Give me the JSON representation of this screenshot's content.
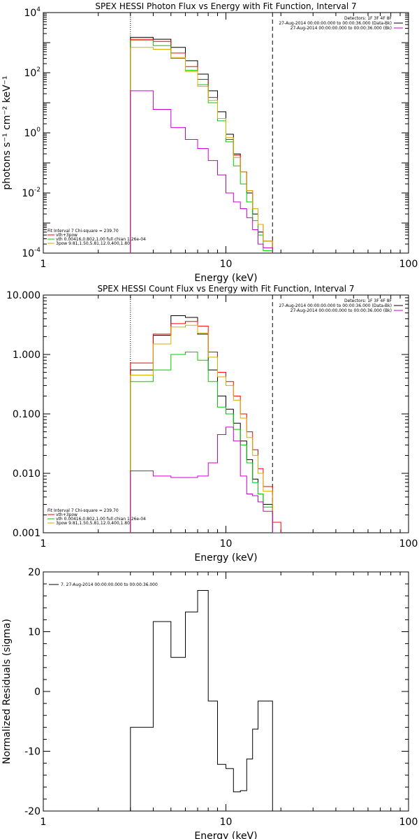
{
  "chart_data": [
    {
      "type": "line",
      "title": "SPEX HESSI Photon Flux vs Energy with Fit Function, Interval 7",
      "xlabel": "Energy (keV)",
      "ylabel": "photons s⁻¹ cm⁻² keV⁻¹",
      "xscale": "log",
      "yscale": "log",
      "xlim": [
        1,
        100
      ],
      "ylim": [
        0.0001,
        10000
      ],
      "x_ticks": [
        {
          "v": 1,
          "t": "1"
        },
        {
          "v": 10,
          "t": "10"
        },
        {
          "v": 100,
          "t": "100"
        }
      ],
      "y_ticks": [
        {
          "v": 0.0001,
          "b": "10",
          "e": "-4"
        },
        {
          "v": 0.01,
          "b": "10",
          "e": "-2"
        },
        {
          "v": 1,
          "b": "10",
          "e": "0"
        },
        {
          "v": 100,
          "b": "10",
          "e": "2"
        },
        {
          "v": 10000,
          "b": "10",
          "e": "4"
        }
      ],
      "vlines": [
        {
          "x": 3.0,
          "style": "dotted"
        },
        {
          "x": 18.0,
          "style": "dashed"
        }
      ],
      "legend_top": [
        {
          "text": "Detectors: 1F 3F 4F 8F",
          "color": ""
        },
        {
          "text": "27-Aug-2014 00:00:00.000 to 00:00:36.000 (Data-Bk)",
          "color": "#000000"
        },
        {
          "text": "27-Aug-2014 00:00:00.000 to 00:00:36.000 (Bk)",
          "color": "#cc00cc"
        }
      ],
      "legend_bottom": [
        {
          "text": "Fit Interval 7   Chi-square = 239.70",
          "color": ""
        },
        {
          "text": "vth+3pow",
          "color": "#ff0000"
        },
        {
          "text": "vth 0.00416,0.802,1.00   full chian 1.26e-04",
          "color": "#00cc00"
        },
        {
          "text": "3pow 9.81,1.50,5.81,12.0,400,1.80",
          "color": "#ddaa00"
        }
      ],
      "edges": [
        3.0,
        4.0,
        5.0,
        6.0,
        7.0,
        8.0,
        9.0,
        10.0,
        11.0,
        12.0,
        13.0,
        14.0,
        15.0,
        16.0,
        18.0
      ],
      "series": [
        {
          "color": "#000000",
          "values": [
            1500,
            1300,
            700,
            250,
            90,
            25,
            5,
            0.9,
            0.2,
            0.05,
            0.01,
            0.002,
            0.0005,
            0.00025
          ]
        },
        {
          "color": "#ff0000",
          "values": [
            1300,
            1100,
            450,
            160,
            60,
            15,
            3,
            0.6,
            0.18,
            0.05,
            0.012,
            0.003,
            0.0009,
            0.00025
          ]
        },
        {
          "color": "#00cc00",
          "values": [
            1200,
            800,
            300,
            120,
            40,
            10,
            2.5,
            0.5,
            0.08,
            0.02,
            0.005,
            0.0012,
            0.0004,
            0.00012
          ]
        },
        {
          "color": "#ddaa00",
          "values": [
            700,
            600,
            320,
            110,
            35,
            12,
            3,
            0.7,
            0.15,
            0.05,
            0.012,
            0.003,
            0.0009,
            0.00025
          ]
        },
        {
          "color": "#cc00cc",
          "values": [
            25,
            6,
            1.5,
            0.6,
            0.3,
            0.12,
            0.04,
            0.01,
            0.005,
            0.003,
            0.0015,
            0.0006,
            0.0002,
            0.00015
          ]
        }
      ]
    },
    {
      "type": "line",
      "title": "SPEX HESSI Count Flux vs Energy with Fit Function, Interval 7",
      "xlabel": "Energy (keV)",
      "ylabel": "",
      "xscale": "log",
      "yscale": "log",
      "xlim": [
        1,
        100
      ],
      "ylim": [
        0.001,
        10
      ],
      "x_ticks": [
        {
          "v": 1,
          "t": "1"
        },
        {
          "v": 10,
          "t": "10"
        },
        {
          "v": 100,
          "t": "100"
        }
      ],
      "y_ticks": [
        {
          "v": 0.001,
          "t": "0.001"
        },
        {
          "v": 0.01,
          "t": "0.010"
        },
        {
          "v": 0.1,
          "t": "0.100"
        },
        {
          "v": 1,
          "t": "1.000"
        },
        {
          "v": 10,
          "t": "10.000"
        }
      ],
      "vlines": [
        {
          "x": 3.0,
          "style": "dotted"
        },
        {
          "x": 18.0,
          "style": "dashed"
        }
      ],
      "legend_top": [
        {
          "text": "Detectors: 1F 3F 4F 8F",
          "color": ""
        },
        {
          "text": "27-Aug-2014 00:00:00.000 to 00:00:36.000 (Data-Bk)",
          "color": "#000000"
        },
        {
          "text": "27-Aug-2014 00:00:00.000 to 00:00:36.000 (Bk)",
          "color": "#cc00cc"
        }
      ],
      "legend_bottom": [
        {
          "text": "Fit Interval 7   Chi-square = 239.70",
          "color": ""
        },
        {
          "text": "vth+3pow",
          "color": "#ff0000"
        },
        {
          "text": "vth 0.00416,0.802,1.00   full chian 1.26e-04",
          "color": "#00cc00"
        },
        {
          "text": "3pow 9.81,1.50,5.81,12.0,400,1.80",
          "color": "#ddaa00"
        }
      ],
      "edges": [
        3.0,
        4.0,
        5.0,
        6.0,
        7.0,
        8.0,
        9.0,
        10.0,
        11.0,
        12.0,
        13.0,
        14.0,
        15.0,
        16.0,
        18.0,
        20.0
      ],
      "series": [
        {
          "color": "#000000",
          "values": [
            0.55,
            2.1,
            4.5,
            4.2,
            2.2,
            0.55,
            0.2,
            0.12,
            0.07,
            0.035,
            0.017,
            0.008,
            0.0045,
            0.003,
            0.001
          ]
        },
        {
          "color": "#ff0000",
          "values": [
            0.72,
            2.2,
            3.3,
            3.6,
            3.0,
            1.1,
            0.5,
            0.35,
            0.2,
            0.1,
            0.05,
            0.025,
            0.012,
            0.006,
            0.0015
          ]
        },
        {
          "color": "#00cc00",
          "values": [
            0.35,
            0.55,
            1.0,
            1.1,
            0.8,
            0.35,
            0.13,
            0.1,
            0.055,
            0.03,
            0.015,
            0.007,
            0.0045,
            0.0027,
            0.001
          ]
        },
        {
          "color": "#ddaa00",
          "values": [
            0.45,
            1.5,
            2.9,
            3.1,
            2.3,
            0.9,
            0.42,
            0.3,
            0.17,
            0.085,
            0.04,
            0.02,
            0.01,
            0.005,
            0.001
          ]
        },
        {
          "color": "#cc00cc",
          "values": [
            0.011,
            0.009,
            0.0085,
            0.0085,
            0.009,
            0.015,
            0.045,
            0.06,
            0.035,
            0.009,
            0.0045,
            0.0042,
            0.0033,
            0.0023,
            0.001
          ]
        }
      ]
    },
    {
      "type": "line",
      "title": "",
      "xlabel": "Energy (keV)",
      "ylabel": "Normalized Residuals (sigma)",
      "xscale": "log",
      "yscale": "linear",
      "xlim": [
        1,
        100
      ],
      "ylim": [
        -20,
        20
      ],
      "x_ticks": [
        {
          "v": 1,
          "t": "1"
        },
        {
          "v": 10,
          "t": "10"
        },
        {
          "v": 100,
          "t": "100"
        }
      ],
      "y_ticks": [
        {
          "v": -20,
          "t": "-20"
        },
        {
          "v": -10,
          "t": "-10"
        },
        {
          "v": 0,
          "t": "0"
        },
        {
          "v": 10,
          "t": "10"
        },
        {
          "v": 20,
          "t": "20"
        }
      ],
      "vlines": [],
      "legend_top": [],
      "legend_bottom": [],
      "legend_resid": {
        "text": "7. 27-Aug-2014 00:00:00.000 to 00:00:36.000",
        "color": "#000000"
      },
      "edges": [
        3.0,
        4.0,
        5.0,
        6.0,
        7.0,
        8.0,
        9.0,
        10.0,
        11.0,
        12.0,
        13.0,
        14.0,
        15.0,
        16.0,
        18.0
      ],
      "series": [
        {
          "color": "#000000",
          "values": [
            -6.0,
            11.7,
            5.7,
            13.3,
            16.9,
            -1.6,
            -12.2,
            -12.9,
            -16.8,
            -16.6,
            -11.3,
            -6.3,
            -1.6,
            -1.6
          ]
        }
      ]
    }
  ]
}
